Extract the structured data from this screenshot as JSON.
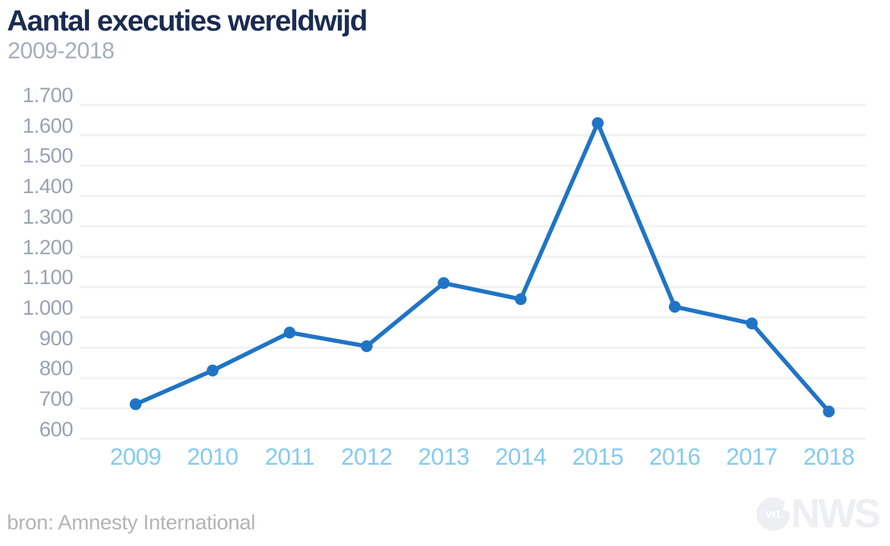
{
  "header": {
    "title": "Aantal executies wereldwijd",
    "subtitle": "2009-2018"
  },
  "source": {
    "label": "bron: Amnesty International"
  },
  "logo": {
    "vrt": "vrt",
    "nws": "NWS"
  },
  "colors": {
    "line": "#2074c6",
    "point": "#2074c6",
    "gridline": "#f0f1f3",
    "title": "#1b2b52",
    "subtitle": "#a7aeba",
    "y_label": "#9aa3b1",
    "x_label": "#84cbf2",
    "source_text": "#b4b4b6",
    "logo": "#edeff2",
    "background": "#ffffff"
  },
  "chart_data": {
    "type": "line",
    "title": "Aantal executies wereldwijd",
    "subtitle": "2009-2018",
    "x": [
      2009,
      2010,
      2011,
      2012,
      2013,
      2014,
      2015,
      2016,
      2017,
      2018
    ],
    "values": [
      714,
      825,
      950,
      905,
      1113,
      1060,
      1640,
      1035,
      980,
      690
    ],
    "xlabel": "",
    "ylabel": "",
    "ylim": [
      600,
      1700
    ],
    "y_tick_step": 100,
    "y_tick_labels": [
      "1.700",
      "1.600",
      "1.500",
      "1.400",
      "1.300",
      "1.200",
      "1.100",
      "1.000",
      "900",
      "800",
      "700",
      "600"
    ],
    "grid": "horizontal-only",
    "legend": "none",
    "marker": "circle"
  }
}
